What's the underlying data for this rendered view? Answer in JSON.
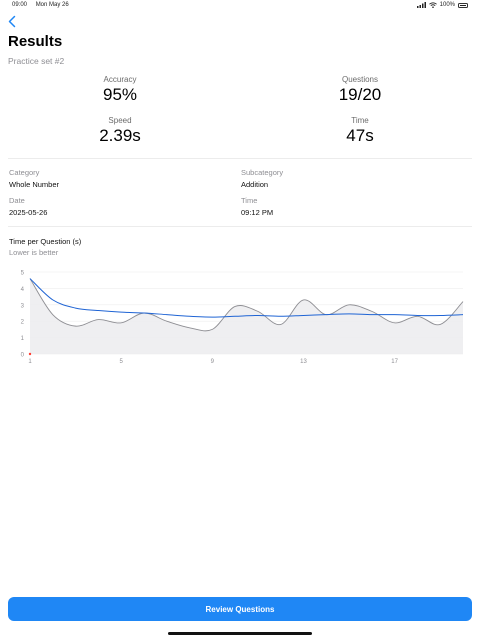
{
  "status_bar": {
    "time": "09:00",
    "date": "Mon May 26",
    "battery": "100%"
  },
  "header": {
    "title": "Results",
    "subtitle": "Practice set #2"
  },
  "stats": {
    "accuracy": {
      "label": "Accuracy",
      "value": "95%"
    },
    "questions": {
      "label": "Questions",
      "value": "19/20"
    },
    "speed": {
      "label": "Speed",
      "value": "2.39s"
    },
    "time": {
      "label": "Time",
      "value": "47s"
    }
  },
  "details": {
    "category": {
      "label": "Category",
      "value": "Whole Number"
    },
    "subcategory": {
      "label": "Subcategory",
      "value": "Addition"
    },
    "date": {
      "label": "Date",
      "value": "2025-05-26"
    },
    "time": {
      "label": "Time",
      "value": "09:12 PM"
    }
  },
  "chart_data": {
    "type": "line",
    "title": "Time per Question (s)",
    "subtitle": "Lower is better",
    "x": [
      1,
      2,
      3,
      4,
      5,
      6,
      7,
      8,
      9,
      10,
      11,
      12,
      13,
      14,
      15,
      16,
      17,
      18,
      19,
      20
    ],
    "x_ticks": [
      1,
      5,
      9,
      13,
      17
    ],
    "y_ticks": [
      0,
      1,
      2,
      3,
      4,
      5
    ],
    "ylim": [
      0,
      5
    ],
    "xlim": [
      1,
      20
    ],
    "grid": true,
    "series": [
      {
        "values": [
          4.6,
          2.4,
          1.7,
          2.1,
          1.9,
          2.5,
          2.0,
          1.6,
          1.5,
          2.9,
          2.6,
          1.8,
          3.3,
          2.4,
          3.0,
          2.6,
          1.9,
          2.3,
          1.8,
          3.2
        ],
        "color": "#8e8e93"
      },
      {
        "values": [
          4.6,
          3.3,
          2.8,
          2.65,
          2.55,
          2.5,
          2.4,
          2.3,
          2.25,
          2.3,
          2.35,
          2.3,
          2.35,
          2.4,
          2.45,
          2.4,
          2.4,
          2.35,
          2.35,
          2.4
        ],
        "color": "#1f64d4"
      }
    ]
  },
  "actions": {
    "review_label": "Review Questions"
  },
  "colors": {
    "accent": "#1f87f5",
    "chart_line": "#1f64d4",
    "chart_raw": "#8e8e93"
  }
}
